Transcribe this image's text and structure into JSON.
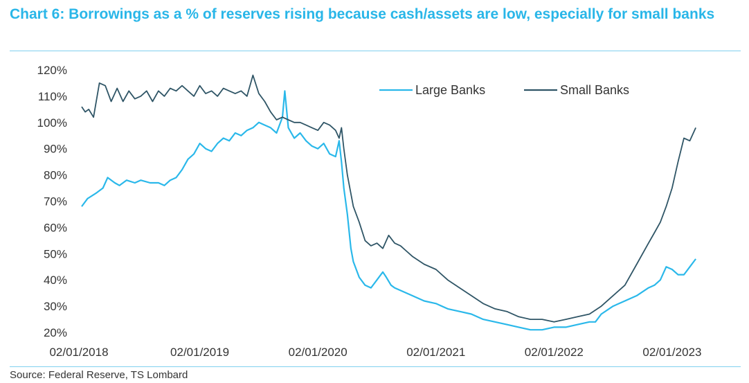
{
  "title": "Chart 6: Borrowings as a % of reserves rising because cash/assets are low, especially for small banks",
  "source": "Source: Federal Reserve, TS Lombard",
  "colors": {
    "title": "#29b6e8",
    "large": "#2ab8ea",
    "small": "#2f5566",
    "rule": "#7fd0ef"
  },
  "chart_data": {
    "type": "line",
    "title": "Chart 6: Borrowings as a % of reserves rising because cash/assets are low, especially for small banks",
    "xlabel": "",
    "ylabel": "",
    "xlim": [
      2018.0,
      2023.27
    ],
    "ylim": [
      20,
      120
    ],
    "y_ticks": [
      120,
      110,
      100,
      90,
      80,
      70,
      60,
      50,
      40,
      30,
      20
    ],
    "y_tick_labels": [
      "120%",
      "110%",
      "100%",
      "90%",
      "80%",
      "70%",
      "60%",
      "50%",
      "40%",
      "30%",
      "20%"
    ],
    "x_ticks": [
      2018,
      2019,
      2020,
      2021,
      2022,
      2023
    ],
    "x_tick_labels": [
      "02/01/2018",
      "02/01/2019",
      "02/01/2020",
      "02/01/2021",
      "02/01/2022",
      "02/01/2023"
    ],
    "legend_position": "top-right",
    "series": [
      {
        "name": "Large Banks",
        "x": [
          2018.0,
          2018.05,
          2018.12,
          2018.18,
          2018.22,
          2018.28,
          2018.32,
          2018.38,
          2018.45,
          2018.5,
          2018.58,
          2018.65,
          2018.7,
          2018.75,
          2018.8,
          2018.85,
          2018.9,
          2018.95,
          2019.0,
          2019.05,
          2019.1,
          2019.15,
          2019.2,
          2019.25,
          2019.3,
          2019.35,
          2019.4,
          2019.45,
          2019.5,
          2019.55,
          2019.6,
          2019.65,
          2019.7,
          2019.72,
          2019.75,
          2019.8,
          2019.85,
          2019.9,
          2019.95,
          2020.0,
          2020.05,
          2020.1,
          2020.15,
          2020.18,
          2020.2,
          2020.22,
          2020.25,
          2020.28,
          2020.3,
          2020.35,
          2020.4,
          2020.45,
          2020.5,
          2020.55,
          2020.58,
          2020.62,
          2020.65,
          2020.7,
          2020.8,
          2020.9,
          2021.0,
          2021.1,
          2021.2,
          2021.3,
          2021.4,
          2021.5,
          2021.6,
          2021.7,
          2021.8,
          2021.9,
          2022.0,
          2022.1,
          2022.2,
          2022.3,
          2022.35,
          2022.4,
          2022.5,
          2022.6,
          2022.7,
          2022.8,
          2022.85,
          2022.9,
          2022.95,
          2023.0,
          2023.05,
          2023.1,
          2023.15,
          2023.2
        ],
        "values": [
          68,
          71,
          73,
          75,
          79,
          77,
          76,
          78,
          77,
          78,
          77,
          77,
          76,
          78,
          79,
          82,
          86,
          88,
          92,
          90,
          89,
          92,
          94,
          93,
          96,
          95,
          97,
          98,
          100,
          99,
          98,
          96,
          102,
          112,
          98,
          94,
          96,
          93,
          91,
          90,
          92,
          88,
          87,
          93,
          85,
          75,
          65,
          52,
          47,
          41,
          38,
          37,
          40,
          43,
          41,
          38,
          37,
          36,
          34,
          32,
          31,
          29,
          28,
          27,
          25,
          24,
          23,
          22,
          21,
          21,
          22,
          22,
          23,
          24,
          24,
          27,
          30,
          32,
          34,
          37,
          38,
          40,
          45,
          44,
          42,
          42,
          45,
          48
        ]
      },
      {
        "name": "Small Banks",
        "x": [
          2018.0,
          2018.03,
          2018.06,
          2018.1,
          2018.15,
          2018.2,
          2018.25,
          2018.3,
          2018.35,
          2018.4,
          2018.45,
          2018.5,
          2018.55,
          2018.6,
          2018.65,
          2018.7,
          2018.75,
          2018.8,
          2018.85,
          2018.9,
          2018.95,
          2019.0,
          2019.05,
          2019.1,
          2019.15,
          2019.2,
          2019.25,
          2019.3,
          2019.35,
          2019.4,
          2019.45,
          2019.5,
          2019.55,
          2019.6,
          2019.65,
          2019.7,
          2019.75,
          2019.8,
          2019.85,
          2019.9,
          2019.95,
          2020.0,
          2020.05,
          2020.1,
          2020.15,
          2020.18,
          2020.2,
          2020.22,
          2020.25,
          2020.3,
          2020.35,
          2020.4,
          2020.45,
          2020.5,
          2020.55,
          2020.6,
          2020.65,
          2020.7,
          2020.75,
          2020.8,
          2020.9,
          2021.0,
          2021.1,
          2021.2,
          2021.3,
          2021.4,
          2021.5,
          2021.6,
          2021.7,
          2021.8,
          2021.9,
          2022.0,
          2022.1,
          2022.2,
          2022.3,
          2022.4,
          2022.5,
          2022.6,
          2022.7,
          2022.8,
          2022.85,
          2022.9,
          2022.95,
          2023.0,
          2023.05,
          2023.1,
          2023.15,
          2023.2
        ],
        "values": [
          106,
          104,
          105,
          102,
          115,
          114,
          108,
          113,
          108,
          112,
          109,
          110,
          112,
          108,
          112,
          110,
          113,
          112,
          114,
          112,
          110,
          114,
          111,
          112,
          110,
          113,
          112,
          111,
          112,
          110,
          118,
          111,
          108,
          104,
          101,
          102,
          101,
          100,
          100,
          99,
          98,
          97,
          100,
          99,
          97,
          94,
          98,
          90,
          80,
          68,
          62,
          55,
          53,
          54,
          52,
          57,
          54,
          53,
          51,
          49,
          46,
          44,
          40,
          37,
          34,
          31,
          29,
          28,
          26,
          25,
          25,
          24,
          25,
          26,
          27,
          30,
          34,
          38,
          46,
          54,
          58,
          62,
          68,
          75,
          85,
          94,
          93,
          98
        ]
      }
    ]
  }
}
